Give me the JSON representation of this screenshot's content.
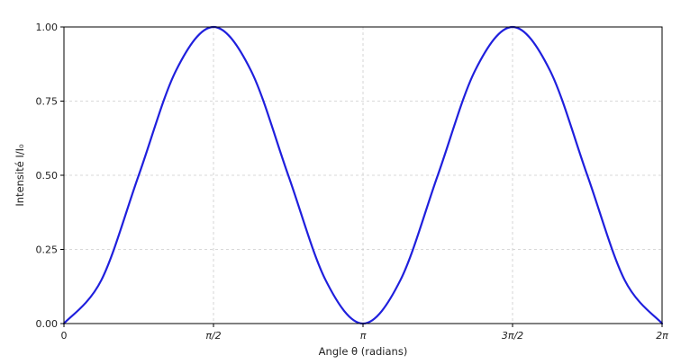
{
  "chart_data": {
    "type": "line",
    "xlabel": "Angle θ (radians)",
    "ylabel": "Intensité I/I₀",
    "xlim": [
      0,
      6.283185307179586
    ],
    "ylim": [
      0,
      1
    ],
    "xticks": [
      {
        "value": 0,
        "label": "0"
      },
      {
        "value": 1.5707963267948966,
        "label": "π/2"
      },
      {
        "value": 3.141592653589793,
        "label": "π"
      },
      {
        "value": 4.71238898038469,
        "label": "3π/2"
      },
      {
        "value": 6.283185307179586,
        "label": "2π"
      }
    ],
    "yticks": [
      {
        "value": 0,
        "label": "0.00"
      },
      {
        "value": 0.25,
        "label": "0.25"
      },
      {
        "value": 0.5,
        "label": "0.50"
      },
      {
        "value": 0.75,
        "label": "0.75"
      },
      {
        "value": 1,
        "label": "1.00"
      }
    ],
    "grid": true,
    "series": [
      {
        "color": "#1f1fdd",
        "x": [
          0,
          0.3927,
          0.7854,
          1.1781,
          1.5708,
          1.9635,
          2.3562,
          2.7489,
          3.1416,
          3.5343,
          3.927,
          4.3197,
          4.7124,
          5.1051,
          5.4978,
          5.8905,
          6.2832
        ],
        "y": [
          0,
          0.1464,
          0.5,
          0.8536,
          1,
          0.8536,
          0.5,
          0.1464,
          0,
          0.1464,
          0.5,
          0.8536,
          1,
          0.8536,
          0.5,
          0.1464,
          0
        ]
      }
    ]
  }
}
